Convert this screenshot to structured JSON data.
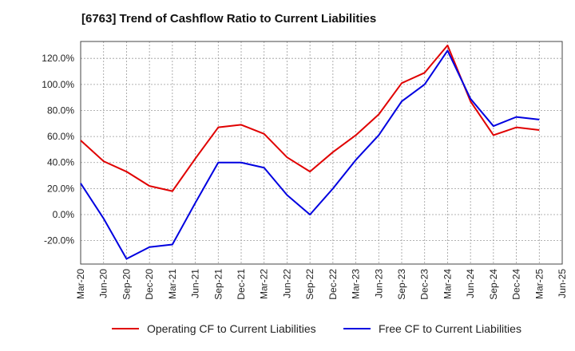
{
  "chart_data": {
    "type": "line",
    "title": "[6763]  Trend of Cashflow Ratio to Current Liabilities",
    "xlabel": "",
    "ylabel": "",
    "x_ticks": [
      "Mar-20",
      "Jun-20",
      "Sep-20",
      "Dec-20",
      "Mar-21",
      "Jun-21",
      "Sep-21",
      "Dec-21",
      "Mar-22",
      "Jun-22",
      "Sep-22",
      "Dec-22",
      "Mar-23",
      "Jun-23",
      "Sep-23",
      "Dec-23",
      "Mar-24",
      "Jun-24",
      "Sep-24",
      "Dec-24",
      "Mar-25",
      "Jun-25"
    ],
    "y_ticks": [
      -20,
      0,
      20,
      40,
      60,
      80,
      100,
      120
    ],
    "y_tick_suffix": ".0%",
    "ylim": [
      -38,
      133
    ],
    "grid": true,
    "legend_position": "bottom",
    "series": [
      {
        "name": "Operating CF to Current Liabilities",
        "color": "#e00000",
        "x": [
          "Mar-20",
          "Jun-20",
          "Sep-20",
          "Dec-20",
          "Mar-21",
          "Jun-21",
          "Sep-21",
          "Dec-21",
          "Mar-22",
          "Jun-22",
          "Sep-22",
          "Dec-22",
          "Mar-23",
          "Jun-23",
          "Sep-23",
          "Dec-23",
          "Mar-24",
          "Jun-24",
          "Sep-24",
          "Dec-24",
          "Mar-25"
        ],
        "values": [
          57,
          41,
          33,
          22,
          18,
          43,
          67,
          69,
          62,
          44,
          33,
          48,
          61,
          77,
          101,
          109,
          130,
          87,
          61,
          67,
          65
        ]
      },
      {
        "name": "Free CF to Current Liabilities",
        "color": "#0000e0",
        "x": [
          "Mar-20",
          "Jun-20",
          "Sep-20",
          "Dec-20",
          "Mar-21",
          "Jun-21",
          "Sep-21",
          "Dec-21",
          "Mar-22",
          "Jun-22",
          "Sep-22",
          "Dec-22",
          "Mar-23",
          "Jun-23",
          "Sep-23",
          "Dec-23",
          "Mar-24",
          "Jun-24",
          "Sep-24",
          "Dec-24",
          "Mar-25"
        ],
        "values": [
          24,
          -3,
          -34,
          -25,
          -23,
          9,
          40,
          40,
          36,
          15,
          0,
          20,
          42,
          61,
          87,
          100,
          126,
          89,
          68,
          75,
          73
        ]
      }
    ]
  }
}
